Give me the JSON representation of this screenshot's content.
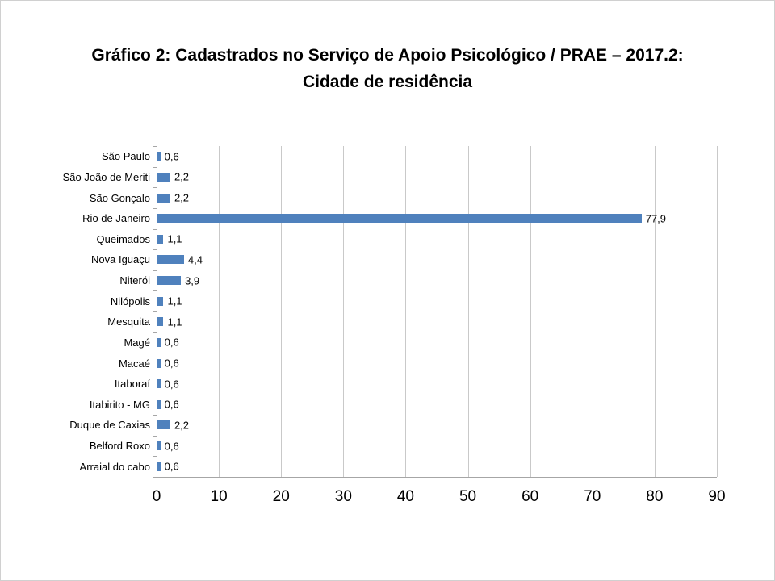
{
  "chart_data": {
    "type": "bar",
    "orientation": "horizontal",
    "title": "Gráfico 2: Cadastrados no Serviço de Apoio Psicológico / PRAE – 2017.2: Cidade de residência",
    "categories": [
      "São Paulo",
      "São João de Meriti",
      "São Gonçalo",
      "Rio de Janeiro",
      "Queimados",
      "Nova Iguaçu",
      "Niterói",
      "Nilópolis",
      "Mesquita",
      "Magé",
      "Macaé",
      "Itaboraí",
      "Itabirito - MG",
      "Duque de Caxias",
      "Belford Roxo",
      "Arraial do cabo"
    ],
    "values": [
      0.6,
      2.2,
      2.2,
      77.9,
      1.1,
      4.4,
      3.9,
      1.1,
      1.1,
      0.6,
      0.6,
      0.6,
      0.6,
      2.2,
      0.6,
      0.6
    ],
    "value_labels": [
      "0,6",
      "2,2",
      "2,2",
      "77,9",
      "1,1",
      "4,4",
      "3,9",
      "1,1",
      "1,1",
      "0,6",
      "0,6",
      "0,6",
      "0,6",
      "2,2",
      "0,6",
      "0,6"
    ],
    "xlabel": "",
    "ylabel": "",
    "xlim": [
      0,
      90
    ],
    "x_ticks": [
      "0",
      "10",
      "20",
      "30",
      "40",
      "50",
      "60",
      "70",
      "80",
      "90"
    ],
    "bar_color": "#4f81bd",
    "grid": true,
    "legend": "none"
  }
}
